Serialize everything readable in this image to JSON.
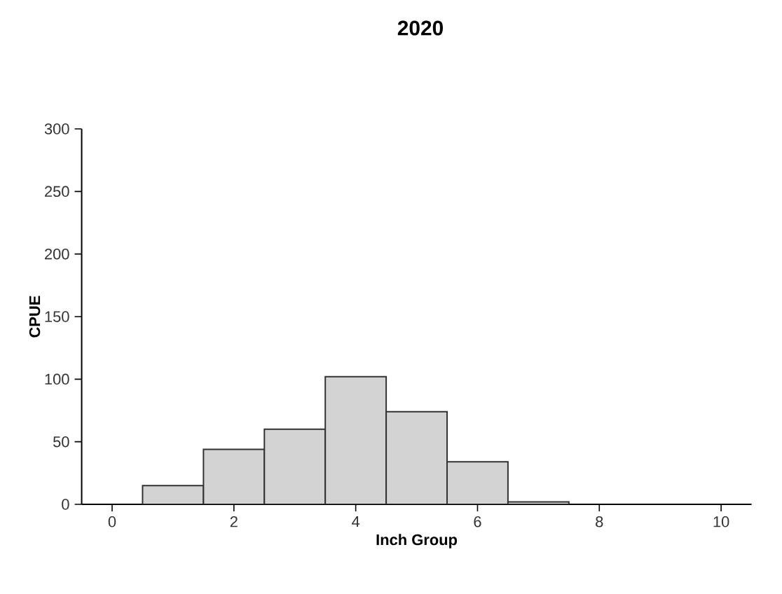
{
  "chart_data": {
    "type": "histogram",
    "title": "2020",
    "xlabel": "Inch Group",
    "ylabel": "CPUE",
    "bins": [
      0.5,
      1.5,
      2.5,
      3.5,
      4.5,
      5.5,
      6.5,
      7.5
    ],
    "values": [
      15,
      44,
      60,
      102,
      74,
      34,
      2
    ],
    "color": "#d3d3d3",
    "xlim": [
      -0.5,
      10.5
    ],
    "xticks": [
      0,
      2,
      4,
      6,
      8,
      10
    ],
    "ylim": [
      0,
      300
    ],
    "yticks": [
      0,
      50,
      100,
      150,
      200,
      250,
      300
    ],
    "grid": false
  }
}
